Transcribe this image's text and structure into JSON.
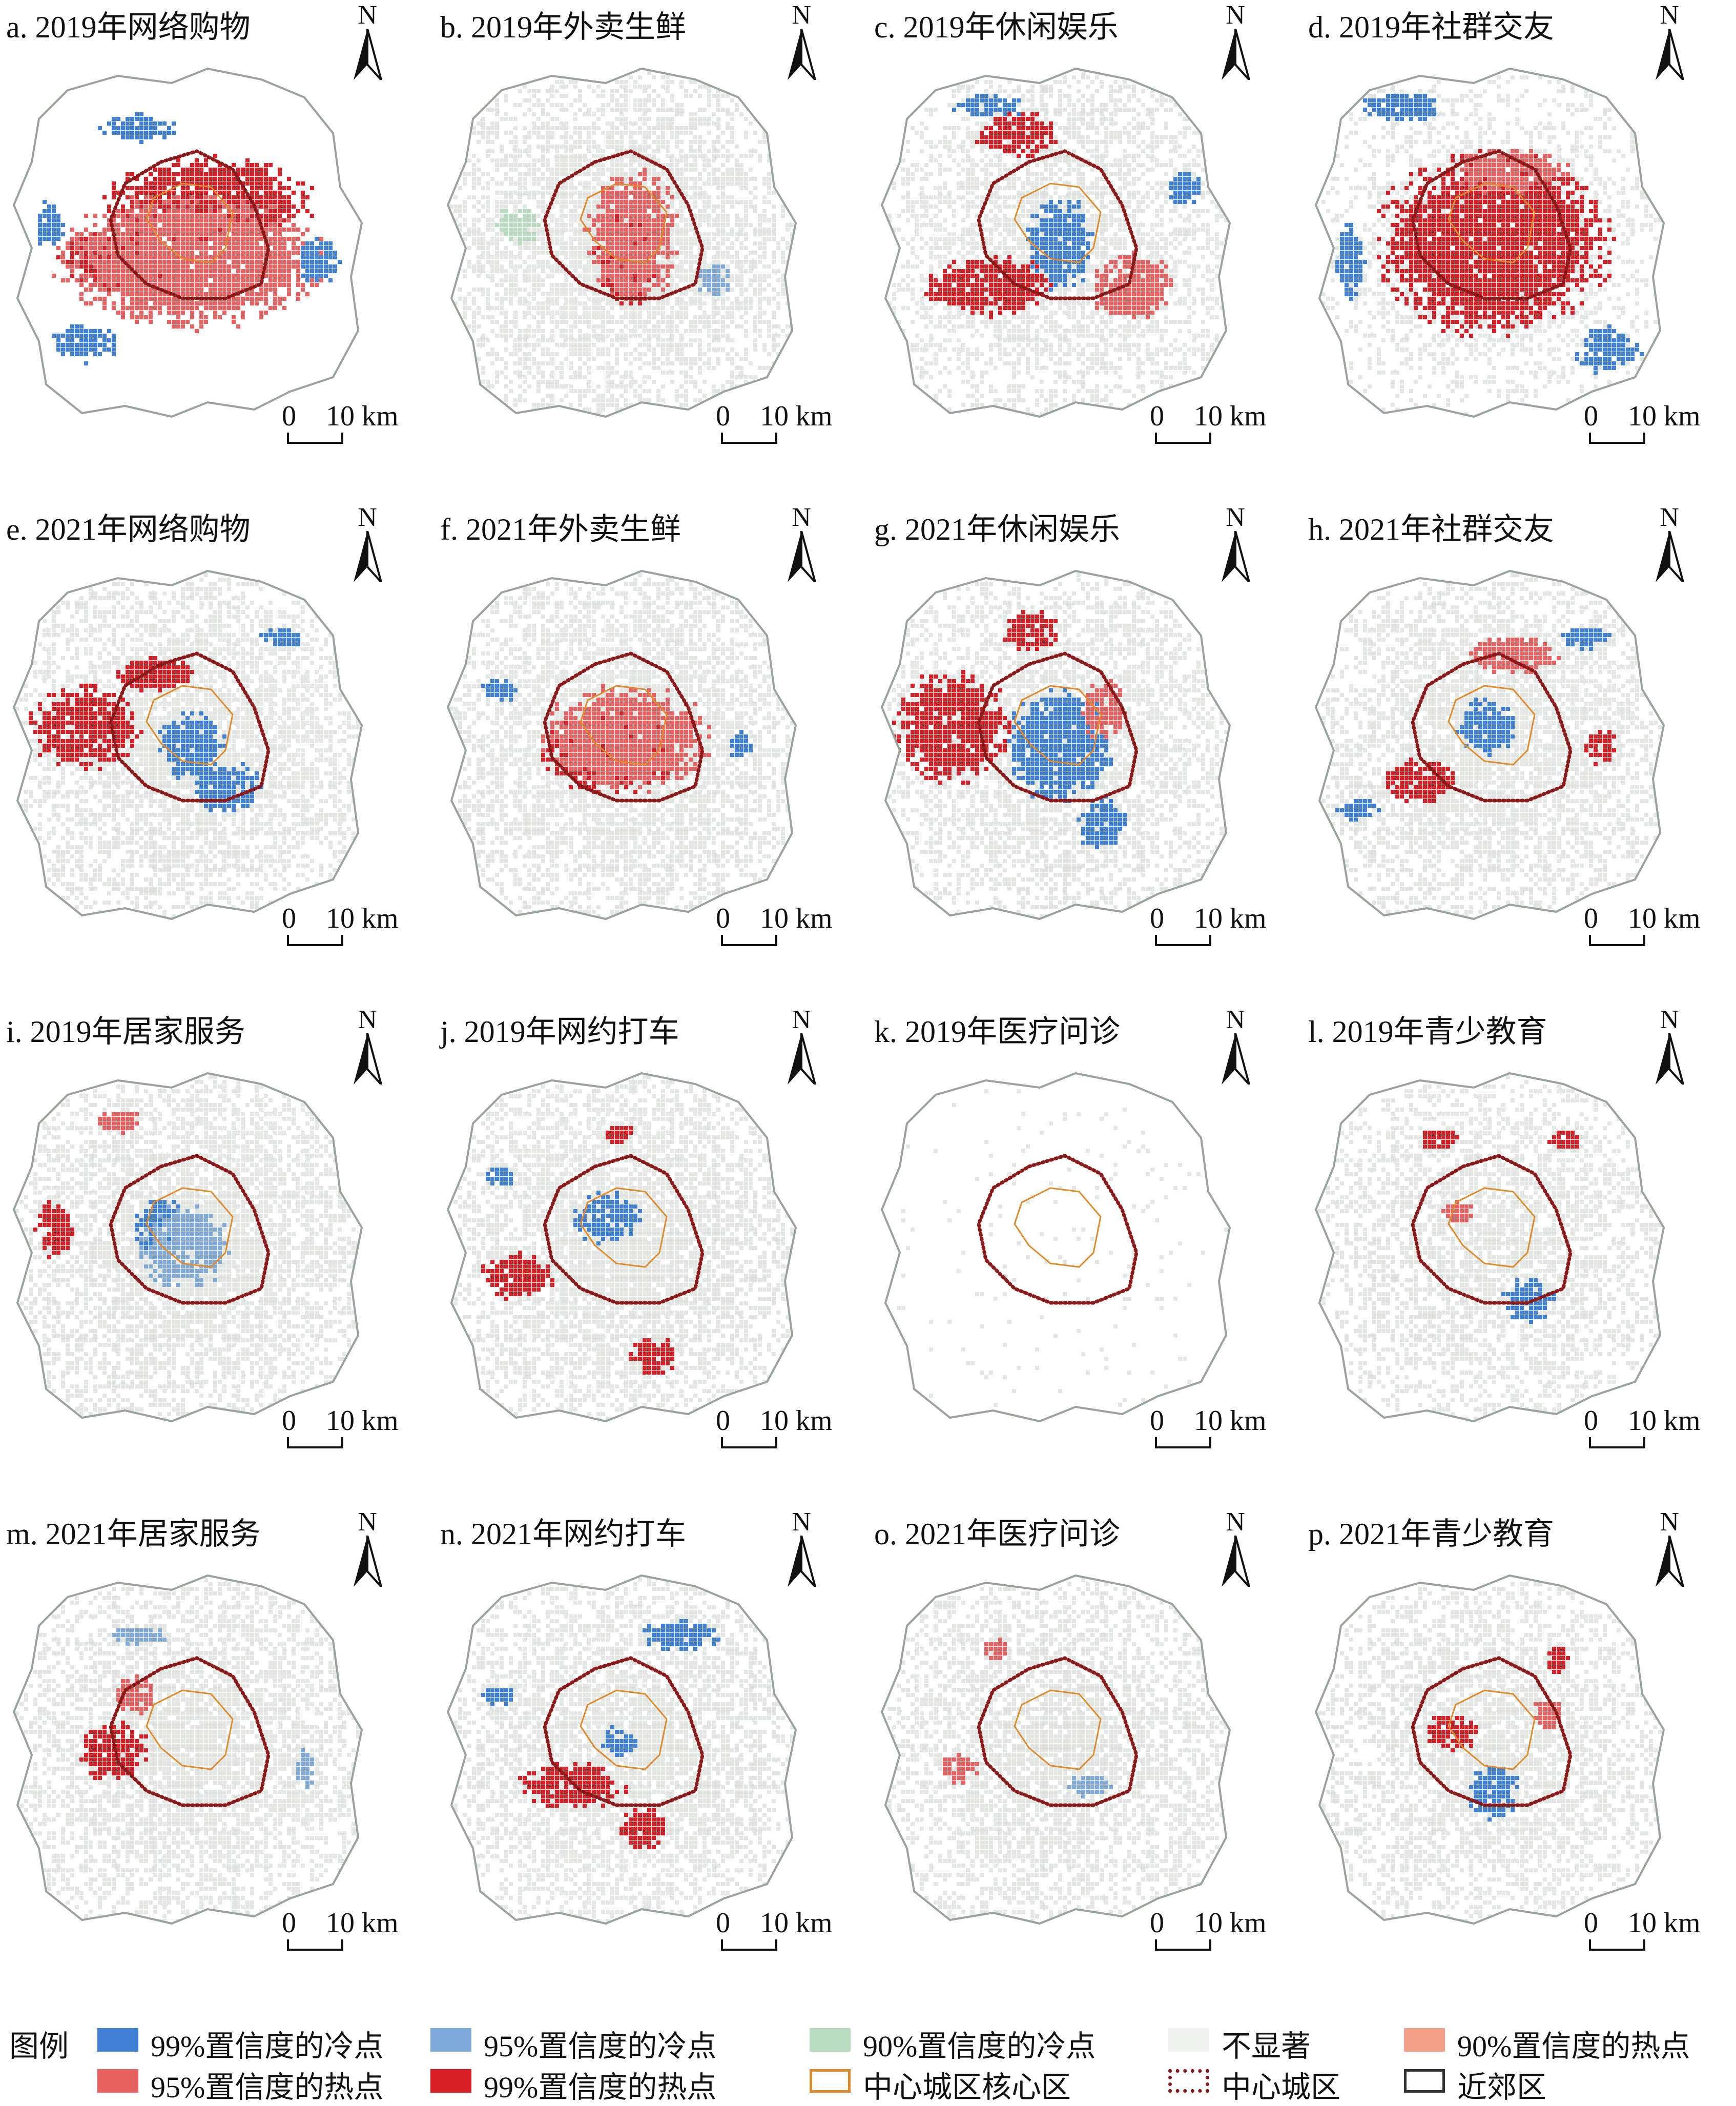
{
  "panels": [
    {
      "id": "a",
      "label": "a. 2019年网络购物"
    },
    {
      "id": "b",
      "label": "b. 2019年外卖生鲜"
    },
    {
      "id": "c",
      "label": "c. 2019年休闲娱乐"
    },
    {
      "id": "d",
      "label": "d. 2019年社群交友"
    },
    {
      "id": "e",
      "label": "e. 2021年网络购物"
    },
    {
      "id": "f",
      "label": "f. 2021年外卖生鲜"
    },
    {
      "id": "g",
      "label": "g. 2021年休闲娱乐"
    },
    {
      "id": "h",
      "label": "h. 2021年社群交友"
    },
    {
      "id": "i",
      "label": "i. 2019年居家服务"
    },
    {
      "id": "j",
      "label": "j. 2019年网约打车"
    },
    {
      "id": "k",
      "label": "k. 2019年医疗问诊"
    },
    {
      "id": "l",
      "label": "l. 2019年青少教育"
    },
    {
      "id": "m",
      "label": "m. 2021年居家服务"
    },
    {
      "id": "n",
      "label": "n. 2021年网约打车"
    },
    {
      "id": "o",
      "label": "o. 2021年医疗问诊"
    },
    {
      "id": "p",
      "label": "p. 2021年青少教育"
    }
  ],
  "north_label": "N",
  "scale": {
    "zero": "0",
    "distance": "10 km"
  },
  "legend": {
    "title": "图例",
    "items": [
      {
        "label": "99%置信度的冷点",
        "color": "#3f7fd6",
        "kind": "fill"
      },
      {
        "label": "95%置信度的冷点",
        "color": "#7ea9d8",
        "kind": "fill"
      },
      {
        "label": "90%置信度的冷点",
        "color": "#b9dcc0",
        "kind": "fill"
      },
      {
        "label": "不显著",
        "color": "#eef1ee",
        "kind": "fill"
      },
      {
        "label": "90%置信度的热点",
        "color": "#f4a08a",
        "kind": "fill"
      },
      {
        "label": "95%置信度的热点",
        "color": "#e8605f",
        "kind": "fill"
      },
      {
        "label": "99%置信度的热点",
        "color": "#d91f26",
        "kind": "fill"
      },
      {
        "label": "中心城区核心区",
        "color": "#e08a2e",
        "kind": "outline"
      },
      {
        "label": "中心城区",
        "color": "#8b1a1a",
        "kind": "dotted"
      },
      {
        "label": "近郊区",
        "color": "#333333",
        "kind": "outline"
      }
    ]
  },
  "colors": {
    "boundary": "#9aa39a",
    "core": "#e08a2e",
    "central": "#8b1a1a",
    "nonsig": "#e3e7e3"
  },
  "hotspots": {
    "a": [
      [
        "#d91f26",
        0.55,
        0.38,
        0.55,
        0.22
      ],
      [
        "#d91f26",
        0.32,
        0.55,
        0.35,
        0.18
      ],
      [
        "#e8605f",
        0.5,
        0.55,
        0.7,
        0.35
      ],
      [
        "#3f7fd6",
        0.85,
        0.55,
        0.12,
        0.12
      ],
      [
        "#3f7fd6",
        0.35,
        0.18,
        0.2,
        0.08
      ],
      [
        "#3f7fd6",
        0.2,
        0.78,
        0.18,
        0.1
      ],
      [
        "#3f7fd6",
        0.1,
        0.45,
        0.08,
        0.12
      ]
    ],
    "b": [
      [
        "#d91f26",
        0.5,
        0.52,
        0.16,
        0.3
      ],
      [
        "#e8605f",
        0.52,
        0.48,
        0.24,
        0.36
      ],
      [
        "#b9dcc0",
        0.2,
        0.45,
        0.12,
        0.1
      ],
      [
        "#7ea9d8",
        0.75,
        0.6,
        0.1,
        0.1
      ]
    ],
    "c": [
      [
        "#3f7fd6",
        0.5,
        0.5,
        0.18,
        0.25
      ],
      [
        "#d91f26",
        0.3,
        0.62,
        0.35,
        0.16
      ],
      [
        "#d91f26",
        0.38,
        0.2,
        0.22,
        0.12
      ],
      [
        "#e8605f",
        0.7,
        0.62,
        0.22,
        0.18
      ],
      [
        "#3f7fd6",
        0.3,
        0.12,
        0.2,
        0.06
      ],
      [
        "#3f7fd6",
        0.85,
        0.35,
        0.1,
        0.1
      ]
    ],
    "d": [
      [
        "#d91f26",
        0.5,
        0.5,
        0.62,
        0.48
      ],
      [
        "#e8605f",
        0.55,
        0.3,
        0.3,
        0.12
      ],
      [
        "#3f7fd6",
        0.25,
        0.12,
        0.22,
        0.08
      ],
      [
        "#3f7fd6",
        0.1,
        0.55,
        0.08,
        0.2
      ],
      [
        "#3f7fd6",
        0.82,
        0.8,
        0.18,
        0.12
      ]
    ],
    "e": [
      [
        "#3f7fd6",
        0.5,
        0.5,
        0.18,
        0.18
      ],
      [
        "#3f7fd6",
        0.6,
        0.62,
        0.18,
        0.14
      ],
      [
        "#d91f26",
        0.2,
        0.45,
        0.3,
        0.22
      ],
      [
        "#d91f26",
        0.4,
        0.3,
        0.2,
        0.1
      ],
      [
        "#3f7fd6",
        0.75,
        0.2,
        0.12,
        0.06
      ]
    ],
    "f": [
      [
        "#d91f26",
        0.45,
        0.52,
        0.35,
        0.22
      ],
      [
        "#e8605f",
        0.5,
        0.48,
        0.45,
        0.28
      ],
      [
        "#3f7fd6",
        0.15,
        0.35,
        0.1,
        0.06
      ],
      [
        "#3f7fd6",
        0.82,
        0.5,
        0.06,
        0.08
      ]
    ],
    "g": [
      [
        "#3f7fd6",
        0.5,
        0.5,
        0.28,
        0.3
      ],
      [
        "#3f7fd6",
        0.62,
        0.72,
        0.14,
        0.14
      ],
      [
        "#d91f26",
        0.2,
        0.45,
        0.3,
        0.3
      ],
      [
        "#d91f26",
        0.42,
        0.18,
        0.16,
        0.12
      ],
      [
        "#e8605f",
        0.62,
        0.4,
        0.12,
        0.16
      ]
    ],
    "h": [
      [
        "#3f7fd6",
        0.48,
        0.45,
        0.15,
        0.15
      ],
      [
        "#d91f26",
        0.3,
        0.6,
        0.2,
        0.12
      ],
      [
        "#e8605f",
        0.55,
        0.25,
        0.25,
        0.1
      ],
      [
        "#d91f26",
        0.8,
        0.5,
        0.08,
        0.1
      ],
      [
        "#3f7fd6",
        0.75,
        0.2,
        0.14,
        0.06
      ],
      [
        "#3f7fd6",
        0.12,
        0.68,
        0.12,
        0.06
      ]
    ],
    "i": [
      [
        "#3f7fd6",
        0.42,
        0.45,
        0.16,
        0.16
      ],
      [
        "#7ea9d8",
        0.48,
        0.5,
        0.24,
        0.22
      ],
      [
        "#d91f26",
        0.12,
        0.45,
        0.1,
        0.16
      ],
      [
        "#e8605f",
        0.3,
        0.15,
        0.12,
        0.06
      ]
    ],
    "j": [
      [
        "#3f7fd6",
        0.45,
        0.42,
        0.18,
        0.14
      ],
      [
        "#d91f26",
        0.2,
        0.58,
        0.2,
        0.12
      ],
      [
        "#d91f26",
        0.48,
        0.18,
        0.08,
        0.06
      ],
      [
        "#d91f26",
        0.58,
        0.8,
        0.12,
        0.1
      ],
      [
        "#3f7fd6",
        0.15,
        0.3,
        0.1,
        0.05
      ]
    ],
    "k": [],
    "l": [
      [
        "#3f7fd6",
        0.6,
        0.65,
        0.14,
        0.12
      ],
      [
        "#e8605f",
        0.4,
        0.4,
        0.08,
        0.06
      ],
      [
        "#d91f26",
        0.35,
        0.2,
        0.1,
        0.06
      ],
      [
        "#d91f26",
        0.7,
        0.2,
        0.1,
        0.05
      ]
    ],
    "m": [
      [
        "#d91f26",
        0.28,
        0.5,
        0.18,
        0.16
      ],
      [
        "#e8605f",
        0.34,
        0.35,
        0.12,
        0.1
      ],
      [
        "#7ea9d8",
        0.35,
        0.18,
        0.16,
        0.05
      ],
      [
        "#7ea9d8",
        0.82,
        0.55,
        0.06,
        0.1
      ]
    ],
    "n": [
      [
        "#d91f26",
        0.35,
        0.6,
        0.28,
        0.12
      ],
      [
        "#d91f26",
        0.55,
        0.72,
        0.12,
        0.12
      ],
      [
        "#3f7fd6",
        0.48,
        0.48,
        0.1,
        0.08
      ],
      [
        "#3f7fd6",
        0.65,
        0.18,
        0.22,
        0.08
      ],
      [
        "#3f7fd6",
        0.15,
        0.35,
        0.1,
        0.05
      ]
    ],
    "o": [
      [
        "#e8605f",
        0.32,
        0.22,
        0.08,
        0.06
      ],
      [
        "#e8605f",
        0.22,
        0.55,
        0.1,
        0.08
      ],
      [
        "#7ea9d8",
        0.58,
        0.6,
        0.12,
        0.06
      ]
    ],
    "p": [
      [
        "#d91f26",
        0.38,
        0.45,
        0.14,
        0.1
      ],
      [
        "#3f7fd6",
        0.5,
        0.62,
        0.14,
        0.14
      ],
      [
        "#e8605f",
        0.65,
        0.4,
        0.08,
        0.1
      ],
      [
        "#d91f26",
        0.68,
        0.25,
        0.06,
        0.08
      ]
    ]
  },
  "nonsig_extent": {
    "a": 0.0,
    "b": 0.85,
    "c": 0.7,
    "d": 0.5,
    "e": 0.8,
    "f": 0.85,
    "g": 0.75,
    "h": 0.8,
    "i": 0.85,
    "j": 0.85,
    "k": 0.05,
    "l": 0.7,
    "m": 0.8,
    "n": 0.8,
    "o": 0.75,
    "p": 0.75
  }
}
